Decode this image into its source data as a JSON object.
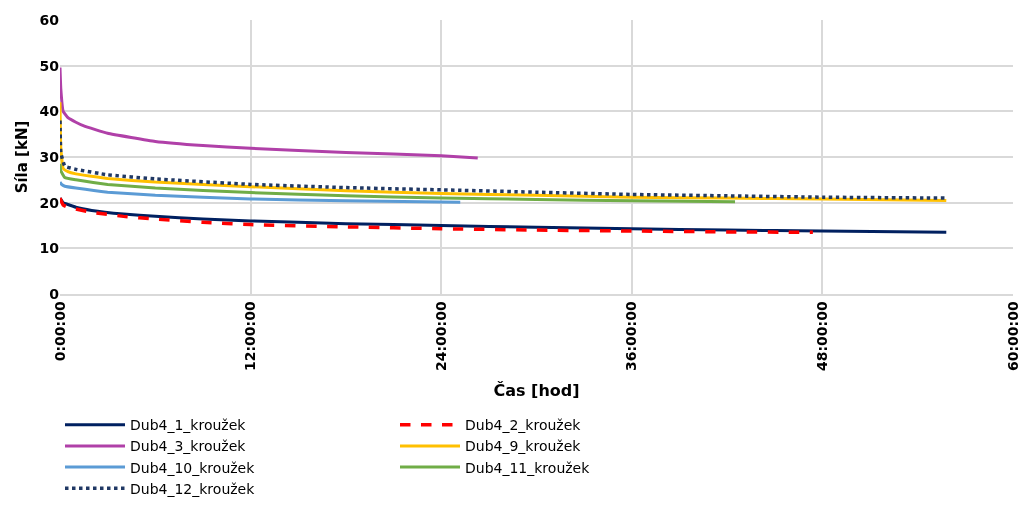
{
  "chart_data": {
    "type": "line",
    "xlabel": "Čas [hod]",
    "ylabel": "Síla [kN]",
    "xlim": [
      0,
      60
    ],
    "ylim": [
      0,
      60
    ],
    "xticks": [
      {
        "value": 0,
        "label": "0:00:00"
      },
      {
        "value": 12,
        "label": "12:00:00"
      },
      {
        "value": 24,
        "label": "24:00:00"
      },
      {
        "value": 36,
        "label": "36:00:00"
      },
      {
        "value": 48,
        "label": "48:00:00"
      },
      {
        "value": 60,
        "label": "60:00:00"
      }
    ],
    "yticks": [
      0,
      10,
      20,
      30,
      40,
      50,
      60
    ],
    "grid": true,
    "legend": "bottom",
    "marker": "none",
    "series": [
      {
        "name": "Dub4_1_kroužek",
        "color": "#002060",
        "line_style": "solid",
        "x": [
          0,
          0.2,
          0.5,
          1,
          2,
          4,
          6,
          9,
          12,
          18,
          24,
          30,
          36,
          42,
          48,
          55.8
        ],
        "values": [
          21,
          20,
          19.6,
          19,
          18.3,
          17.5,
          17,
          16.4,
          16,
          15.4,
          15,
          14.6,
          14.3,
          14,
          13.8,
          13.5
        ]
      },
      {
        "name": "Dub4_2_kroužek",
        "color": "#ff0000",
        "line_style": "dashed",
        "x": [
          0,
          0.2,
          0.5,
          1,
          2,
          4,
          6,
          9,
          12,
          18,
          24,
          30,
          36,
          42,
          47.4
        ],
        "values": [
          21,
          19.5,
          19,
          18.6,
          17.9,
          17,
          16.4,
          15.7,
          15.2,
          14.7,
          14.3,
          14,
          13.8,
          13.6,
          13.5
        ]
      },
      {
        "name": "Dub4_3_kroužek",
        "color": "#b040a8",
        "line_style": "solid",
        "x": [
          0,
          0.05,
          0.2,
          0.5,
          1,
          1.5,
          3,
          6,
          9,
          12,
          18,
          24,
          26.3
        ],
        "values": [
          49.6,
          45,
          40,
          38.6,
          37.6,
          36.8,
          35.2,
          33.4,
          32.5,
          31.9,
          31,
          30.3,
          29.8
        ]
      },
      {
        "name": "Dub4_9_kroužek",
        "color": "#ffc000",
        "line_style": "solid",
        "x": [
          0,
          0.05,
          0.2,
          0.5,
          1,
          3,
          6,
          12,
          18,
          24,
          30,
          36,
          42,
          48,
          55.8
        ],
        "values": [
          42,
          32,
          27.5,
          26.8,
          26.3,
          25.3,
          24.5,
          23.5,
          22.6,
          22,
          21.6,
          21.2,
          21,
          20.8,
          20.5
        ]
      },
      {
        "name": "Dub4_10_kroužek",
        "color": "#5b9bd5",
        "line_style": "solid",
        "x": [
          0,
          0.1,
          0.3,
          1,
          3,
          6,
          12,
          18,
          25.2
        ],
        "values": [
          24.5,
          24,
          23.6,
          23.2,
          22.3,
          21.6,
          20.8,
          20.4,
          20.1
        ]
      },
      {
        "name": "Dub4_11_kroužek",
        "color": "#70ad47",
        "line_style": "solid",
        "x": [
          0,
          0.05,
          0.3,
          1,
          3,
          6,
          12,
          18,
          24,
          30,
          36,
          42.5
        ],
        "values": [
          28.5,
          27,
          25.5,
          25,
          24,
          23.2,
          22.2,
          21.5,
          21,
          20.7,
          20.4,
          20.2
        ]
      },
      {
        "name": "Dub4_12_kroužek",
        "color": "#203864",
        "line_style": "dotted",
        "x": [
          0,
          0.05,
          0.3,
          1,
          3,
          6,
          12,
          18,
          24,
          30,
          36,
          42,
          48,
          55.8
        ],
        "values": [
          38,
          31,
          28,
          27.3,
          26.1,
          25.2,
          24,
          23.3,
          22.8,
          22.3,
          21.8,
          21.5,
          21.2,
          21
        ]
      }
    ]
  }
}
